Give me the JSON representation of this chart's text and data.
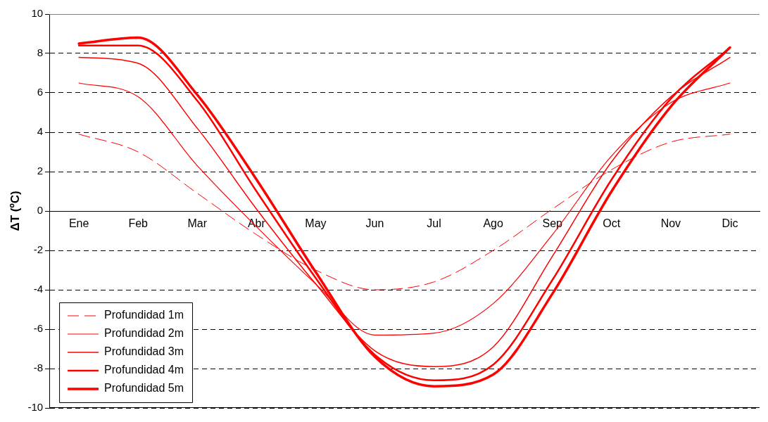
{
  "chart_data": {
    "type": "line",
    "ylabel": "ΔT (ºC)",
    "categories": [
      "Ene",
      "Feb",
      "Mar",
      "Abr",
      "May",
      "Jun",
      "Jul",
      "Ago",
      "Sep",
      "Oct",
      "Nov",
      "Dic"
    ],
    "series": [
      {
        "name": "Profundidad 1m",
        "color": "#ff0000",
        "line_style": "dashed",
        "values": [
          3.9,
          3.0,
          0.9,
          -1.2,
          -3.0,
          -4.0,
          -3.6,
          -2.0,
          0.1,
          2.1,
          3.5,
          3.9
        ]
      },
      {
        "name": "Profundidad 2m",
        "color": "#ff0000",
        "values": [
          6.5,
          5.8,
          2.3,
          -0.8,
          -3.7,
          -6.3,
          -6.2,
          -4.7,
          -1.2,
          2.8,
          5.5,
          6.5
        ]
      },
      {
        "name": "Profundidad 3m",
        "color": "#ff0000",
        "values": [
          7.8,
          7.5,
          4.2,
          0.1,
          -3.7,
          -7.1,
          -7.9,
          -6.9,
          -2.3,
          2.5,
          5.8,
          7.8
        ]
      },
      {
        "name": "Profundidad 4m",
        "color": "#ff0000",
        "values": [
          8.4,
          8.4,
          5.6,
          1.0,
          -3.4,
          -7.3,
          -8.6,
          -7.8,
          -3.5,
          1.6,
          5.7,
          8.3
        ]
      },
      {
        "name": "Profundidad 5m",
        "color": "#ff0000",
        "values": [
          8.5,
          8.8,
          5.9,
          1.6,
          -3.1,
          -7.4,
          -8.9,
          -8.3,
          -4.2,
          1.0,
          5.3,
          8.3
        ]
      }
    ],
    "ylim": [
      -10,
      10
    ],
    "yticks": [
      -10,
      -8,
      -6,
      -4,
      -2,
      0,
      2,
      4,
      6,
      8,
      10
    ],
    "grid": "y",
    "legend": "bottom left",
    "marker": "none"
  }
}
